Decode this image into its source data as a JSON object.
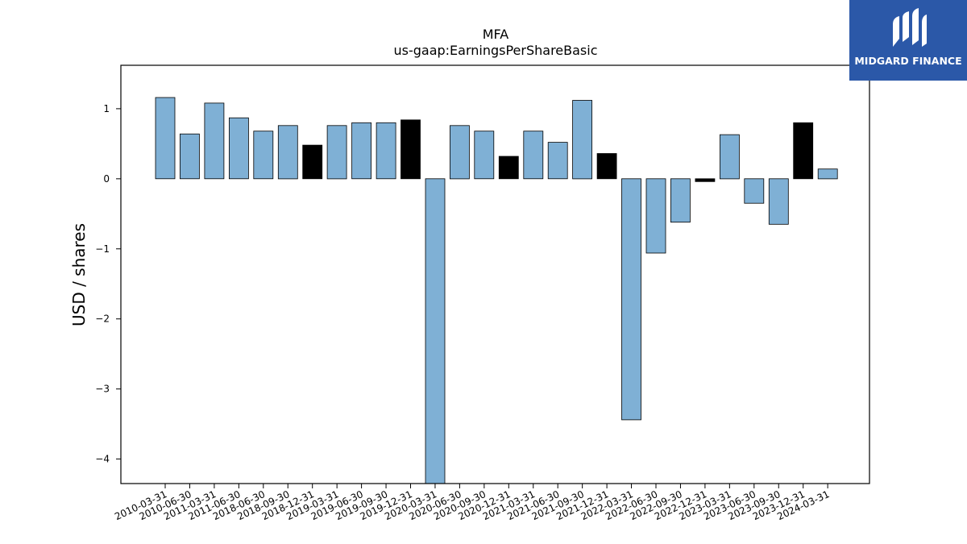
{
  "chart_data": {
    "type": "bar",
    "title": "MFA",
    "subtitle": "us-gaap:EarningsPerShareBasic",
    "ylabel": "USD / shares",
    "xlabel": "",
    "ylim": [
      -4.35,
      1.62
    ],
    "yticks": [
      1,
      0,
      -1,
      -2,
      -3,
      -4
    ],
    "ytick_labels": [
      "1",
      "0",
      "−1",
      "−2",
      "−3",
      "−4"
    ],
    "colors": {
      "default": "#7fb0d5",
      "highlight": "#000000"
    },
    "grid": false,
    "categories": [
      "2010-03-31",
      "2010-06-30",
      "2011-03-31",
      "2011-06-30",
      "2018-06-30",
      "2018-09-30",
      "2018-12-31",
      "2019-03-31",
      "2019-06-30",
      "2019-09-30",
      "2019-12-31",
      "2020-03-31",
      "2020-06-30",
      "2020-09-30",
      "2020-12-31",
      "2021-03-31",
      "2021-06-30",
      "2021-09-30",
      "2021-12-31",
      "2022-03-31",
      "2022-06-30",
      "2022-09-30",
      "2022-12-31",
      "2023-03-31",
      "2023-06-30",
      "2023-09-30",
      "2023-12-31",
      "2024-03-31"
    ],
    "values": [
      1.16,
      0.64,
      1.08,
      0.87,
      0.68,
      0.76,
      0.48,
      0.76,
      0.8,
      0.8,
      0.84,
      -4.35,
      0.76,
      0.68,
      0.32,
      0.68,
      0.52,
      1.12,
      0.36,
      -3.44,
      -1.06,
      -0.62,
      -0.04,
      0.63,
      -0.35,
      -0.65,
      0.8,
      0.14
    ],
    "highlighted": [
      false,
      false,
      false,
      false,
      false,
      false,
      true,
      false,
      false,
      false,
      true,
      false,
      false,
      false,
      true,
      false,
      false,
      false,
      true,
      false,
      false,
      false,
      true,
      false,
      false,
      false,
      true,
      false
    ]
  },
  "logo": {
    "text": "MIDGARD FINANCE"
  }
}
